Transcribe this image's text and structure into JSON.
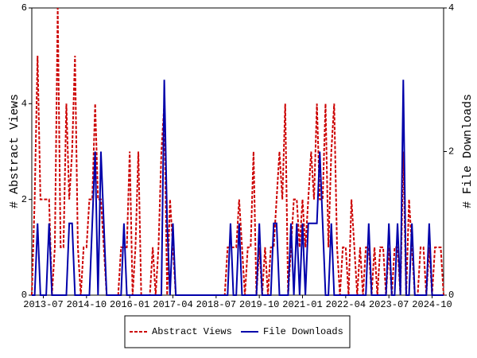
{
  "chart_data": {
    "type": "line",
    "y_label": "# Abstract Views",
    "y2_label": "# File Downloads",
    "categories": [
      null,
      null,
      null,
      null,
      "2013-07",
      null,
      null,
      null,
      null,
      null,
      null,
      null,
      null,
      null,
      null,
      null,
      null,
      null,
      null,
      "2014-10",
      null,
      null,
      null,
      null,
      null,
      null,
      null,
      null,
      null,
      null,
      null,
      null,
      null,
      null,
      "2016-01",
      null,
      null,
      null,
      null,
      null,
      null,
      null,
      null,
      null,
      null,
      null,
      null,
      null,
      null,
      "2017-04",
      null,
      null,
      null,
      null,
      null,
      null,
      null,
      null,
      null,
      null,
      null,
      null,
      null,
      null,
      "2018-07",
      null,
      null,
      null,
      null,
      null,
      null,
      null,
      null,
      null,
      null,
      null,
      null,
      null,
      null,
      "2019-10",
      null,
      null,
      null,
      null,
      null,
      null,
      null,
      null,
      null,
      null,
      null,
      null,
      null,
      null,
      "2021-01",
      null,
      null,
      null,
      null,
      null,
      null,
      null,
      null,
      null,
      null,
      null,
      null,
      null,
      null,
      "2022-04",
      null,
      null,
      null,
      null,
      null,
      null,
      null,
      null,
      null,
      null,
      null,
      null,
      null,
      null,
      "2023-07",
      null,
      null,
      null,
      null,
      null,
      null,
      null,
      null,
      null,
      null,
      null,
      null,
      null,
      null,
      "2024-10",
      null,
      null,
      null,
      null
    ],
    "series": [
      {
        "name": "Abstract Views",
        "color": "#cc0000",
        "dash": true,
        "values": [
          0,
          2,
          5,
          2,
          2,
          2,
          2,
          0,
          1,
          6,
          1,
          1,
          4,
          2,
          3,
          5,
          1,
          0,
          1,
          1,
          2,
          2,
          4,
          2,
          2,
          1,
          0,
          0,
          0,
          0,
          0,
          1,
          1,
          1,
          3,
          0,
          1,
          3,
          0,
          0,
          0,
          0,
          1,
          0,
          1,
          3,
          4,
          0,
          2,
          1,
          0,
          0,
          0,
          0,
          0,
          0,
          0,
          0,
          0,
          0,
          0,
          0,
          0,
          0,
          0,
          0,
          0,
          0,
          1,
          1,
          1,
          1,
          2,
          1,
          0,
          1,
          1,
          3,
          0,
          1,
          0,
          1,
          0,
          1,
          1,
          2,
          3,
          2,
          4,
          0,
          1,
          2,
          2,
          1,
          2,
          1,
          2,
          3,
          2,
          4,
          2,
          2,
          4,
          1,
          3,
          4,
          1,
          0,
          1,
          1,
          0,
          2,
          1,
          0,
          1,
          0,
          1,
          1,
          0,
          1,
          0,
          1,
          1,
          0,
          1,
          0,
          1,
          1,
          0,
          3,
          0,
          2,
          1,
          0,
          0,
          1,
          1,
          0,
          1,
          0,
          1,
          1,
          1,
          0
        ]
      },
      {
        "name": "File Downloads",
        "color": "#0000aa",
        "dash": false,
        "axis": "y2",
        "values": [
          0,
          0,
          1,
          0,
          0,
          0,
          1,
          0,
          0,
          0,
          0,
          0,
          0,
          1,
          1,
          0,
          0,
          0,
          0,
          0,
          0,
          1,
          2,
          0,
          2,
          1,
          0,
          0,
          0,
          0,
          0,
          0,
          1,
          0,
          0,
          0,
          0,
          0,
          0,
          0,
          0,
          0,
          0,
          0,
          0,
          0,
          3,
          1,
          0,
          1,
          0,
          0,
          0,
          0,
          0,
          0,
          0,
          0,
          0,
          0,
          0,
          0,
          0,
          0,
          0,
          0,
          0,
          0,
          0,
          1,
          0,
          0,
          1,
          0,
          0,
          0,
          0,
          0,
          0,
          1,
          0,
          0,
          0,
          0,
          1,
          1,
          0,
          0,
          0,
          0,
          1,
          0,
          1,
          0,
          1,
          0,
          1,
          1,
          1,
          1,
          2,
          1,
          0,
          0,
          1,
          0,
          0,
          0,
          0,
          0,
          0,
          0,
          0,
          0,
          0,
          0,
          0,
          1,
          0,
          0,
          0,
          0,
          0,
          0,
          1,
          0,
          0,
          1,
          0,
          3,
          0,
          0,
          1,
          0,
          0,
          0,
          0,
          0,
          1,
          0,
          0,
          0,
          0,
          0
        ]
      }
    ],
    "ylim": [
      0,
      6
    ],
    "yticks": [
      0,
      2,
      4,
      6
    ],
    "y2lim": [
      0,
      4
    ],
    "y2ticks": [
      0,
      2,
      4
    ],
    "legend": "bottom"
  }
}
